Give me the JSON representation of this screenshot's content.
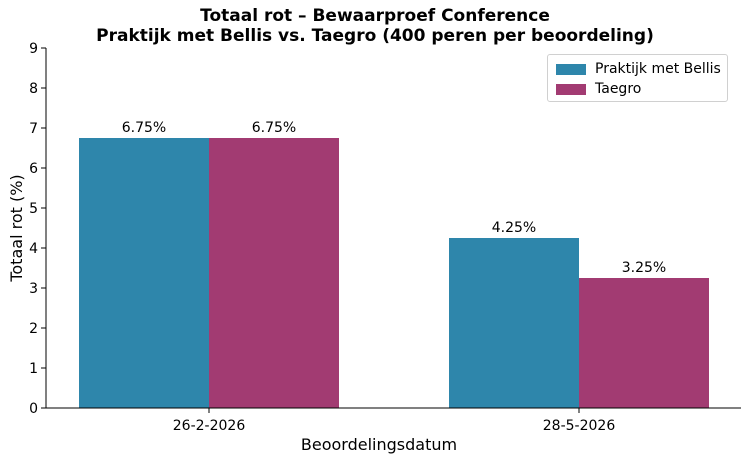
{
  "chart_data": {
    "type": "bar",
    "title": "Totaal rot – Bewaarproef Conference",
    "subtitle": "Praktijk met Bellis vs. Taegro (400 peren per beoordeling)",
    "xlabel": "Beoordelingsdatum",
    "ylabel": "Totaal rot (%)",
    "categories": [
      "26-2-2026",
      "28-5-2026"
    ],
    "series": [
      {
        "name": "Praktijk met Bellis",
        "values": [
          6.75,
          4.25
        ],
        "color": "#2e86ab",
        "labels": [
          "6.75%",
          "4.25%"
        ]
      },
      {
        "name": "Taegro",
        "values": [
          6.75,
          3.25
        ],
        "color": "#a23b72",
        "labels": [
          "6.75%",
          "3.25%"
        ]
      }
    ],
    "ylim": [
      0,
      9
    ],
    "yticks": [
      "0",
      "1",
      "2",
      "3",
      "4",
      "5",
      "6",
      "7",
      "8",
      "9"
    ],
    "grid": false,
    "legend_position": "top-right"
  }
}
